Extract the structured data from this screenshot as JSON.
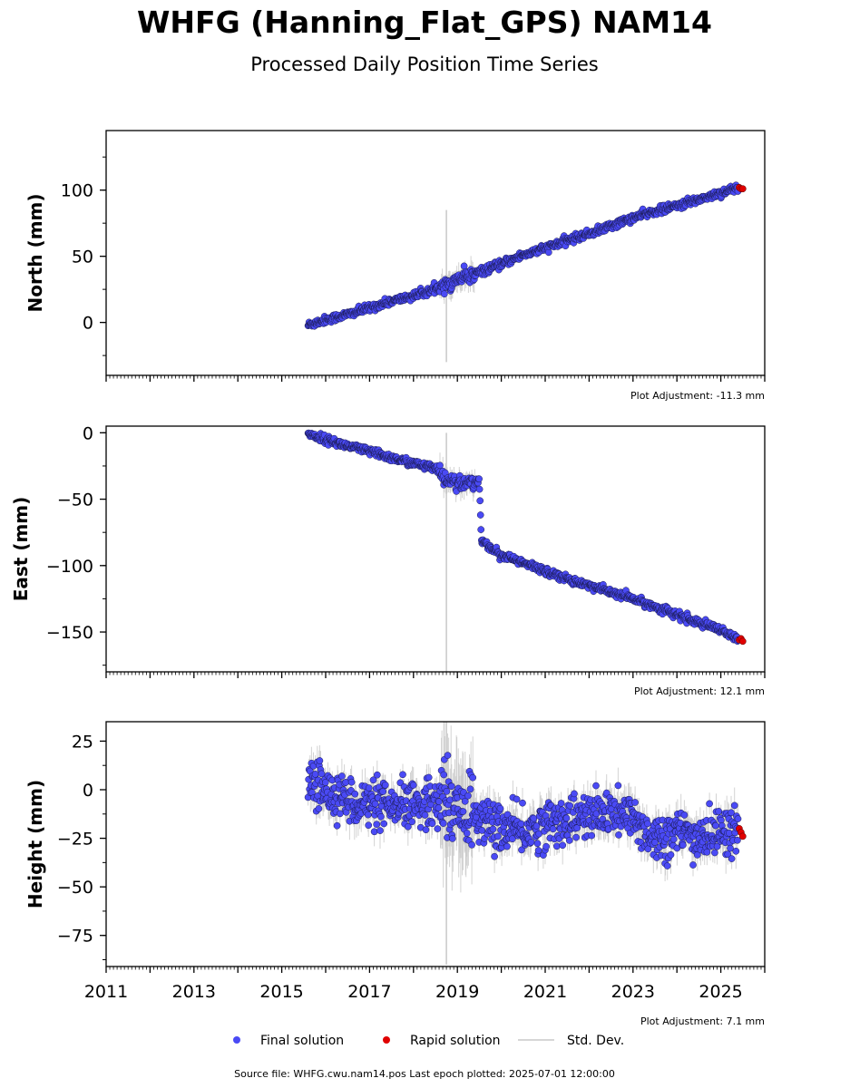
{
  "title": "WHFG (Hanning_Flat_GPS) NAM14",
  "subtitle": "Processed Daily Position Time Series",
  "legend": {
    "final": "Final solution",
    "rapid": "Rapid solution",
    "std": "Std. Dev."
  },
  "colors": {
    "final": "#4a4af5",
    "rapid": "#e00000",
    "std": "#c8c8c8"
  },
  "source": "Source file: WHFG.cwu.nam14.pos  Last epoch plotted: 2025-07-01 12:00:00",
  "chart_data": [
    {
      "type": "scatter",
      "ylabel": "North (mm)",
      "adjustment": "Plot Adjustment: -11.3 mm",
      "xlim": [
        2011.0,
        2026.0
      ],
      "ylim": [
        -40,
        145
      ],
      "yticks": [
        0,
        50,
        100
      ],
      "grid": false,
      "series": [
        {
          "name": "Final solution",
          "x": [
            2015.6,
            2016.0,
            2016.5,
            2017.0,
            2017.5,
            2018.0,
            2018.5,
            2018.75,
            2019.0,
            2019.5,
            2020.0,
            2020.5,
            2021.0,
            2021.5,
            2022.0,
            2022.5,
            2023.0,
            2023.5,
            2024.0,
            2024.5,
            2025.0,
            2025.4
          ],
          "y": [
            -2,
            2,
            6,
            11,
            16,
            20,
            25,
            28,
            33,
            38,
            44,
            51,
            56,
            62,
            67,
            73,
            79,
            84,
            88,
            93,
            98,
            102
          ]
        },
        {
          "name": "Rapid solution",
          "x": [
            2025.42,
            2025.46,
            2025.5
          ],
          "y": [
            102,
            101,
            101
          ]
        }
      ]
    },
    {
      "type": "scatter",
      "ylabel": "East (mm)",
      "adjustment": "Plot Adjustment: 12.1 mm",
      "xlim": [
        2011.0,
        2026.0
      ],
      "ylim": [
        -180,
        5
      ],
      "yticks": [
        0,
        -50,
        -100,
        -150
      ],
      "grid": false,
      "series": [
        {
          "name": "Final solution",
          "x": [
            2015.6,
            2016.0,
            2016.5,
            2017.0,
            2017.5,
            2018.0,
            2018.5,
            2018.75,
            2019.0,
            2019.5,
            2019.55,
            2020.0,
            2020.5,
            2021.0,
            2021.5,
            2022.0,
            2022.5,
            2023.0,
            2023.5,
            2024.0,
            2024.5,
            2025.0,
            2025.4
          ],
          "y": [
            -1,
            -5,
            -10,
            -14,
            -19,
            -23,
            -27,
            -35,
            -38,
            -37,
            -82,
            -92,
            -98,
            -104,
            -110,
            -115,
            -120,
            -125,
            -131,
            -137,
            -143,
            -149,
            -156
          ]
        },
        {
          "name": "Rapid solution",
          "x": [
            2025.42,
            2025.46,
            2025.5
          ],
          "y": [
            -156,
            -155,
            -157
          ]
        }
      ]
    },
    {
      "type": "scatter",
      "ylabel": "Height (mm)",
      "adjustment": "Plot Adjustment: 7.1 mm",
      "xlim": [
        2011.0,
        2026.0
      ],
      "ylim": [
        -91,
        35
      ],
      "yticks": [
        25,
        0,
        -25,
        -50,
        -75
      ],
      "xticks": [
        "2011",
        "2013",
        "2015",
        "2017",
        "2019",
        "2021",
        "2023",
        "2025"
      ],
      "grid": false,
      "series": [
        {
          "name": "Final solution",
          "x": [
            2015.6,
            2016.0,
            2016.5,
            2017.0,
            2017.5,
            2018.0,
            2018.5,
            2018.75,
            2019.0,
            2019.5,
            2020.0,
            2020.5,
            2021.0,
            2021.5,
            2022.0,
            2022.5,
            2023.0,
            2023.5,
            2024.0,
            2024.5,
            2025.0,
            2025.4
          ],
          "y": [
            5,
            0,
            -5,
            -8,
            -10,
            -8,
            -5,
            -3,
            -10,
            -15,
            -20,
            -22,
            -18,
            -15,
            -14,
            -12,
            -15,
            -25,
            -22,
            -25,
            -22,
            -20
          ]
        },
        {
          "name": "Rapid solution",
          "x": [
            2025.42,
            2025.46,
            2025.5
          ],
          "y": [
            -20,
            -22,
            -24
          ]
        }
      ]
    }
  ]
}
